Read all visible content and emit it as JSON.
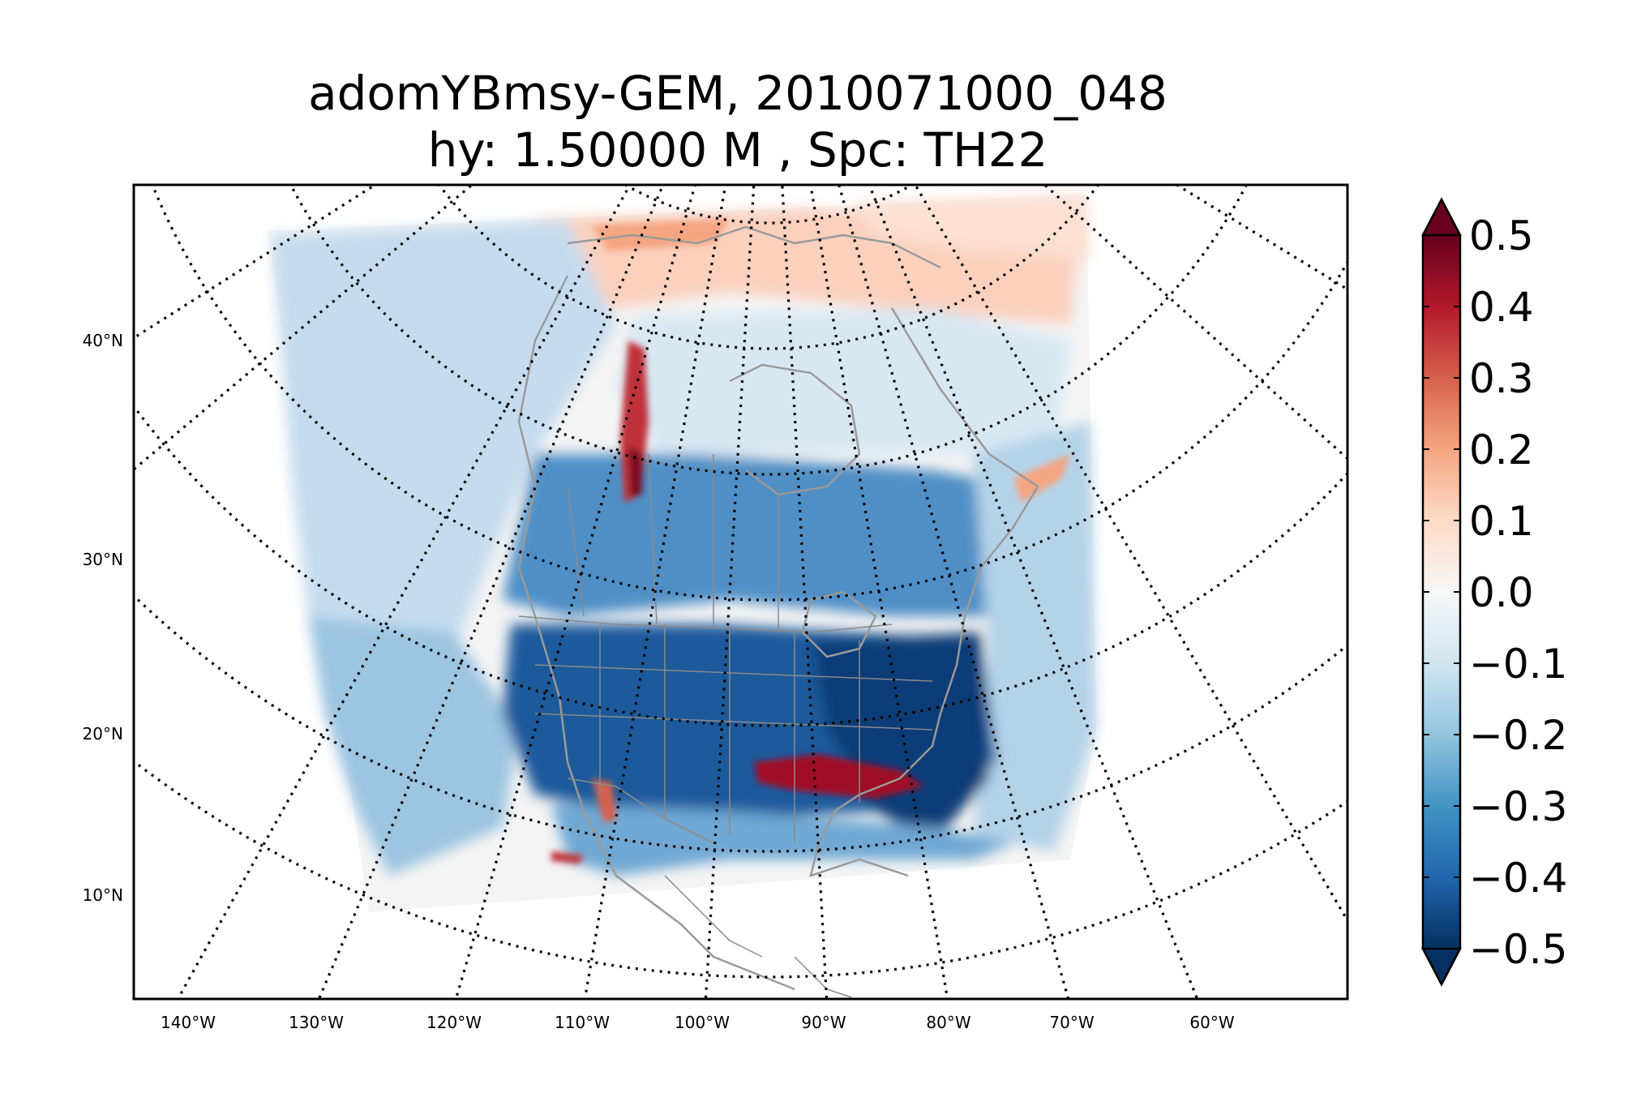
{
  "figure": {
    "title_line1": "adomYBmsy-GEM, 2010071000_048",
    "title_line2": "hy: 1.50000 M , Spc: TH22"
  },
  "map": {
    "projection": "polar stereographic (North America)",
    "lat_labels": [
      "40°N",
      "30°N",
      "20°N",
      "10°N"
    ],
    "lon_labels": [
      "140°W",
      "130°W",
      "120°W",
      "110°W",
      "100°W",
      "90°W",
      "80°W",
      "70°W",
      "60°W"
    ],
    "graticule_style": "dotted black",
    "field_regions": [
      {
        "name": "arctic-ocean",
        "value": 0.12
      },
      {
        "name": "northwest-pacific",
        "value": -0.15
      },
      {
        "name": "pacific-southwest",
        "value": -0.25
      },
      {
        "name": "canadian-prairies",
        "value": -0.35
      },
      {
        "name": "central-plains",
        "value": -0.45
      },
      {
        "name": "east-coast",
        "value": -0.5
      },
      {
        "name": "atlantic",
        "value": -0.2
      },
      {
        "name": "rockies-streak",
        "value": 0.45
      },
      {
        "name": "gulf-streak",
        "value": 0.5
      },
      {
        "name": "mexico-coast",
        "value": 0.3
      }
    ]
  },
  "colorbar": {
    "colormap": "RdBu_r",
    "min": -0.5,
    "max": 0.5,
    "extend": "both",
    "ticks": [
      "0.5",
      "0.4",
      "0.3",
      "0.2",
      "0.1",
      "0.0",
      "−0.1",
      "−0.2",
      "−0.3",
      "−0.4",
      "−0.5"
    ],
    "colors": [
      "#053061",
      "#2166ac",
      "#4393c3",
      "#92c5de",
      "#d1e5f0",
      "#f7f7f7",
      "#fddbc7",
      "#f4a582",
      "#d6604d",
      "#b2182b",
      "#67001f"
    ]
  }
}
